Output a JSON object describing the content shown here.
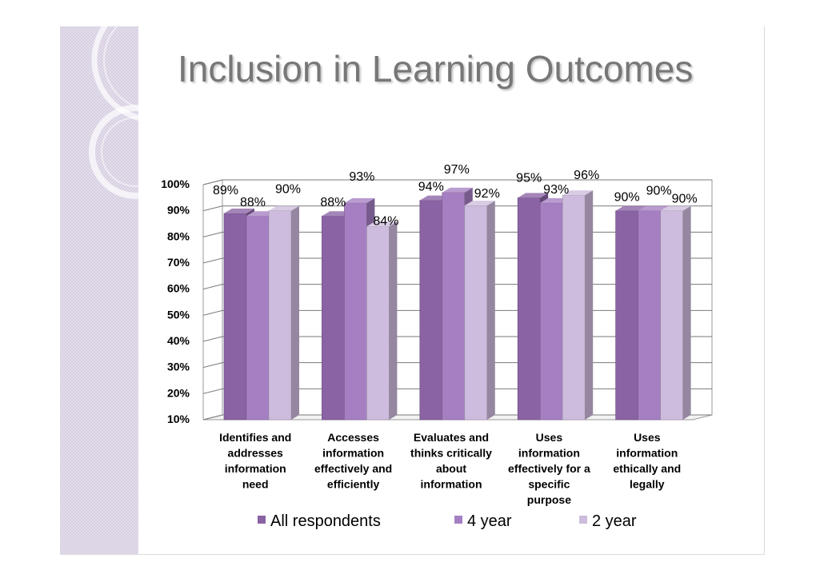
{
  "title": "Inclusion in Learning Outcomes",
  "colors": {
    "all_respondents": "#8a63a4",
    "four_year": "#a57fc2",
    "two_year": "#cdbcdd",
    "slide_band": "#d8d0e2",
    "title_text": "#777777"
  },
  "chart_data": {
    "type": "bar",
    "title": "Inclusion in Learning Outcomes",
    "xlabel": "",
    "ylabel": "",
    "ylim": [
      10,
      100
    ],
    "ytick_step": 10,
    "grid": true,
    "legend_position": "bottom",
    "categories": [
      [
        "Identifies and",
        "addresses",
        "information",
        "need"
      ],
      [
        "Accesses",
        "information",
        "effectively and",
        "efficiently"
      ],
      [
        "Evaluates and",
        "thinks critically",
        "about",
        "information"
      ],
      [
        "Uses",
        "information",
        "effectively for a",
        "specific",
        "purpose"
      ],
      [
        "Uses",
        "information",
        "ethically and",
        "legally"
      ]
    ],
    "series": [
      {
        "name": "All respondents",
        "values": [
          89,
          88,
          94,
          95,
          90
        ]
      },
      {
        "name": "4 year",
        "values": [
          88,
          93,
          97,
          93,
          90
        ]
      },
      {
        "name": "2 year",
        "values": [
          90,
          84,
          92,
          96,
          90
        ]
      }
    ]
  }
}
